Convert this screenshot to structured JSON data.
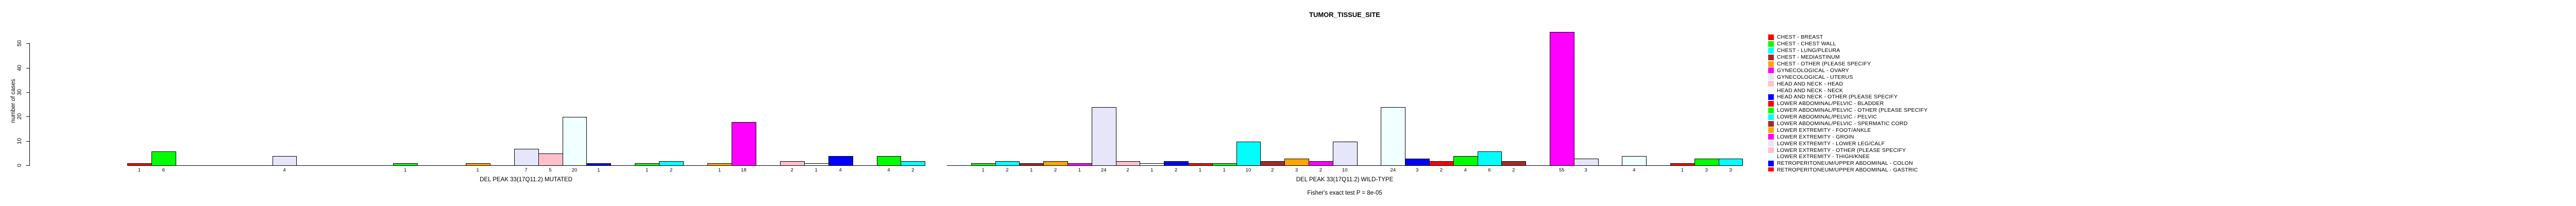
{
  "title": "TUMOR_TISSUE_SITE",
  "subtitle": "Fisher's exact test P = 8e-05",
  "y_axis": {
    "label": "number of cases",
    "ticks": [
      0,
      10,
      20,
      30,
      40,
      50
    ]
  },
  "palette": {
    "red": "#FF0000",
    "green": "#00FF00",
    "cyan": "#00FFFF",
    "brown": "#A52A2A",
    "orange": "#FFA500",
    "magenta": "#FF00FF",
    "lavender": "#E6E6FA",
    "pink": "#FFC0CB",
    "azure": "#F0FFFF",
    "blue": "#0000FF"
  },
  "chart_data": {
    "type": "bar",
    "title": "TUMOR_TISSUE_SITE",
    "ylabel": "number of cases",
    "ylim": [
      0,
      50
    ],
    "grid": false,
    "legend_position": "right",
    "note": "two side-by-side barplots; bar value printed under each bar; colors cycle through 10-color palette by tissue-site category",
    "panels": [
      {
        "label": "DEL PEAK 33(17Q11.2) MUTATED",
        "bars": [
          {
            "slot": 1,
            "value": 1,
            "color": "red",
            "category": "CHEST - BREAST"
          },
          {
            "slot": 2,
            "value": 6,
            "color": "green",
            "category": "CHEST - CHEST WALL"
          },
          {
            "slot": 7,
            "value": 4,
            "color": "lavender",
            "category": "GYNECOLOGICAL - UTERUS"
          },
          {
            "slot": 12,
            "value": 1,
            "color": "green",
            "category": "LOWER ABDOMINAL/PELVIC - OTHER (PLEASE SPECIFY"
          },
          {
            "slot": 15,
            "value": 1,
            "color": "orange",
            "category": "LOWER EXTREMITY - FOOT/ANKLE"
          },
          {
            "slot": 17,
            "value": 7,
            "color": "lavender",
            "category": "LOWER EXTREMITY - LOWER LEG/CALF"
          },
          {
            "slot": 18,
            "value": 5,
            "color": "pink",
            "category": "LOWER EXTREMITY - OTHER (PLEASE SPECIFY"
          },
          {
            "slot": 19,
            "value": 20,
            "color": "azure",
            "category": "LOWER EXTREMITY - THIGH/KNEE"
          },
          {
            "slot": 20,
            "value": 1,
            "color": "blue",
            "category": "RETROPERITONEUM/UPPER ABDOMINAL - COLON"
          },
          {
            "slot": 22,
            "value": 1,
            "color": "green"
          },
          {
            "slot": 23,
            "value": 2,
            "color": "cyan"
          },
          {
            "slot": 25,
            "value": 1,
            "color": "orange"
          },
          {
            "slot": 26,
            "value": 18,
            "color": "magenta"
          },
          {
            "slot": 28,
            "value": 2,
            "color": "pink"
          },
          {
            "slot": 29,
            "value": 1,
            "color": "azure"
          },
          {
            "slot": 30,
            "value": 4,
            "color": "blue"
          },
          {
            "slot": 32,
            "value": 4,
            "color": "green"
          },
          {
            "slot": 33,
            "value": 2,
            "color": "cyan"
          }
        ]
      },
      {
        "label": "DEL PEAK 33(17Q11.2) WILD-TYPE",
        "bars": [
          {
            "slot": 2,
            "value": 1,
            "color": "green",
            "category": "CHEST - CHEST WALL"
          },
          {
            "slot": 3,
            "value": 2,
            "color": "cyan",
            "category": "CHEST - LUNG/PLEURA"
          },
          {
            "slot": 4,
            "value": 1,
            "color": "brown",
            "category": "CHEST - MEDIASTINUM"
          },
          {
            "slot": 5,
            "value": 2,
            "color": "orange",
            "category": "CHEST - OTHER (PLEASE SPECIFY"
          },
          {
            "slot": 6,
            "value": 1,
            "color": "magenta",
            "category": "GYNECOLOGICAL - OVARY"
          },
          {
            "slot": 7,
            "value": 24,
            "color": "lavender",
            "category": "GYNECOLOGICAL - UTERUS"
          },
          {
            "slot": 8,
            "value": 2,
            "color": "pink",
            "category": "HEAD AND NECK - HEAD"
          },
          {
            "slot": 9,
            "value": 1,
            "color": "azure",
            "category": "HEAD AND NECK - NECK"
          },
          {
            "slot": 10,
            "value": 2,
            "color": "blue",
            "category": "HEAD AND NECK - OTHER (PLEASE SPECIFY"
          },
          {
            "slot": 11,
            "value": 1,
            "color": "red",
            "category": "LOWER ABDOMINAL/PELVIC - BLADDER"
          },
          {
            "slot": 12,
            "value": 1,
            "color": "green",
            "category": "LOWER ABDOMINAL/PELVIC - OTHER (PLEASE SPECIFY"
          },
          {
            "slot": 13,
            "value": 10,
            "color": "cyan",
            "category": "LOWER ABDOMINAL/PELVIC - PELVIC"
          },
          {
            "slot": 14,
            "value": 2,
            "color": "brown",
            "category": "LOWER ABDOMINAL/PELVIC - SPERMATIC CORD"
          },
          {
            "slot": 15,
            "value": 3,
            "color": "orange",
            "category": "LOWER EXTREMITY - FOOT/ANKLE"
          },
          {
            "slot": 16,
            "value": 2,
            "color": "magenta",
            "category": "LOWER EXTREMITY - GROIN"
          },
          {
            "slot": 17,
            "value": 10,
            "color": "lavender",
            "category": "LOWER EXTREMITY - LOWER LEG/CALF"
          },
          {
            "slot": 19,
            "value": 24,
            "color": "azure",
            "category": "LOWER EXTREMITY - THIGH/KNEE"
          },
          {
            "slot": 20,
            "value": 3,
            "color": "blue",
            "category": "RETROPERITONEUM/UPPER ABDOMINAL - COLON"
          },
          {
            "slot": 21,
            "value": 2,
            "color": "red",
            "category": "RETROPERITONEUM/UPPER ABDOMINAL - GASTRIC"
          },
          {
            "slot": 22,
            "value": 4,
            "color": "green"
          },
          {
            "slot": 23,
            "value": 6,
            "color": "cyan"
          },
          {
            "slot": 24,
            "value": 2,
            "color": "brown"
          },
          {
            "slot": 26,
            "value": 55,
            "color": "magenta"
          },
          {
            "slot": 27,
            "value": 3,
            "color": "lavender"
          },
          {
            "slot": 29,
            "value": 4,
            "color": "azure"
          },
          {
            "slot": 31,
            "value": 1,
            "color": "red"
          },
          {
            "slot": 32,
            "value": 3,
            "color": "green"
          },
          {
            "slot": 33,
            "value": 3,
            "color": "cyan"
          }
        ]
      }
    ]
  },
  "legend": {
    "items": [
      {
        "label": "CHEST - BREAST",
        "color": "red"
      },
      {
        "label": "CHEST - CHEST WALL",
        "color": "green"
      },
      {
        "label": "CHEST - LUNG/PLEURA",
        "color": "cyan"
      },
      {
        "label": "CHEST - MEDIASTINUM",
        "color": "brown"
      },
      {
        "label": "CHEST - OTHER (PLEASE SPECIFY",
        "color": "orange"
      },
      {
        "label": "GYNECOLOGICAL - OVARY",
        "color": "magenta"
      },
      {
        "label": "GYNECOLOGICAL - UTERUS",
        "color": "lavender"
      },
      {
        "label": "HEAD AND NECK - HEAD",
        "color": "pink"
      },
      {
        "label": "HEAD AND NECK - NECK",
        "color": "azure"
      },
      {
        "label": "HEAD AND NECK - OTHER (PLEASE SPECIFY",
        "color": "blue"
      },
      {
        "label": "LOWER ABDOMINAL/PELVIC - BLADDER",
        "color": "red"
      },
      {
        "label": "LOWER ABDOMINAL/PELVIC - OTHER (PLEASE SPECIFY",
        "color": "green"
      },
      {
        "label": "LOWER ABDOMINAL/PELVIC - PELVIC",
        "color": "cyan"
      },
      {
        "label": "LOWER ABDOMINAL/PELVIC - SPERMATIC CORD",
        "color": "brown"
      },
      {
        "label": "LOWER EXTREMITY - FOOT/ANKLE",
        "color": "orange"
      },
      {
        "label": "LOWER EXTREMITY - GROIN",
        "color": "magenta"
      },
      {
        "label": "LOWER EXTREMITY - LOWER LEG/CALF",
        "color": "lavender"
      },
      {
        "label": "LOWER EXTREMITY - OTHER (PLEASE SPECIFY",
        "color": "pink"
      },
      {
        "label": "LOWER EXTREMITY - THIGH/KNEE",
        "color": "azure"
      },
      {
        "label": "RETROPERITONEUM/UPPER ABDOMINAL - COLON",
        "color": "blue"
      },
      {
        "label": "RETROPERITONEUM/UPPER ABDOMINAL - GASTRIC",
        "color": "red"
      }
    ]
  }
}
